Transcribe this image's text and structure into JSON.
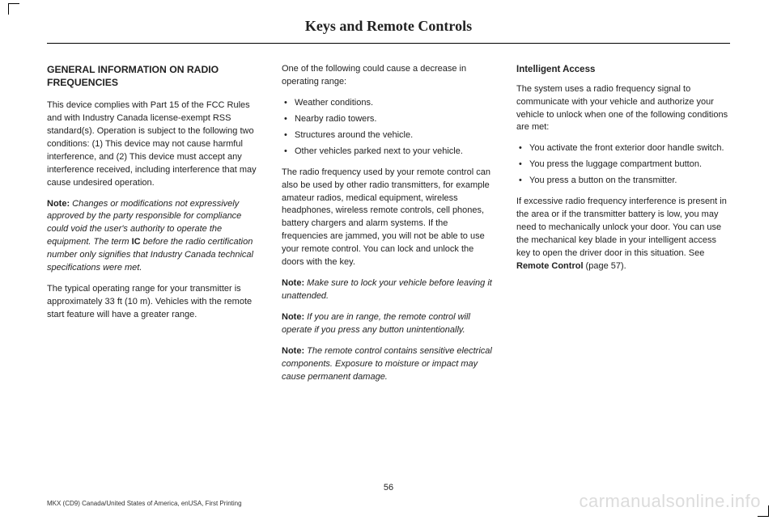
{
  "header": {
    "title": "Keys and Remote Controls"
  },
  "col1": {
    "title": "GENERAL INFORMATION ON RADIO FREQUENCIES",
    "p1": "This device complies with Part 15 of the FCC Rules and with Industry Canada license-exempt RSS standard(s). Operation is subject to the following two conditions: (1) This device may not cause harmful interference, and (2) This device must accept any interference received, including interference that may cause undesired operation.",
    "note1_lead": "Note:",
    "note1_body_a": " Changes or modifications not expressively approved by the party responsible for compliance could void the user's authority to operate the equipment. The term ",
    "note1_ic": "IC",
    "note1_body_b": " before the radio certification number only signifies that Industry Canada technical specifications were met.",
    "p2": "The typical operating range for your transmitter is approximately 33 ft (10 m). Vehicles with the remote start feature will have a greater range."
  },
  "col2": {
    "intro": "One of the following could cause a decrease in operating range:",
    "bullets": [
      "Weather conditions.",
      "Nearby radio towers.",
      "Structures around the vehicle.",
      "Other vehicles parked next to your vehicle."
    ],
    "p1": "The radio frequency used by your remote control can also be used by other radio transmitters, for example amateur radios, medical equipment, wireless headphones, wireless remote controls, cell phones, battery chargers and alarm systems. If the frequencies are jammed, you will not be able to use your remote control. You can lock and unlock the doors with the key.",
    "note1_lead": "Note:",
    "note1_body": " Make sure to lock your vehicle before leaving it unattended.",
    "note2_lead": "Note:",
    "note2_body": " If you are in range, the remote control will operate if you press any button unintentionally.",
    "note3_lead": "Note:",
    "note3_body": " The remote control contains sensitive electrical components. Exposure to moisture or impact may cause permanent damage."
  },
  "col3": {
    "subtitle": "Intelligent Access",
    "p1": "The system uses a radio frequency signal to communicate with your vehicle and authorize your vehicle to unlock when one of the following conditions are met:",
    "bullets": [
      "You activate the front exterior door handle switch.",
      "You press the luggage compartment button.",
      "You press a button on the transmitter."
    ],
    "p2_a": "If excessive radio frequency interference is present in the area or if the transmitter battery is low, you may need to mechanically unlock your door. You can use the mechanical key blade in your intelligent access key to open the driver door in this situation.  See ",
    "p2_bold": "Remote Control",
    "p2_b": " (page 57)."
  },
  "pagenum": "56",
  "footer": "MKX (CD9) Canada/United States of America, enUSA, First Printing",
  "watermark": "carmanualsonline.info"
}
